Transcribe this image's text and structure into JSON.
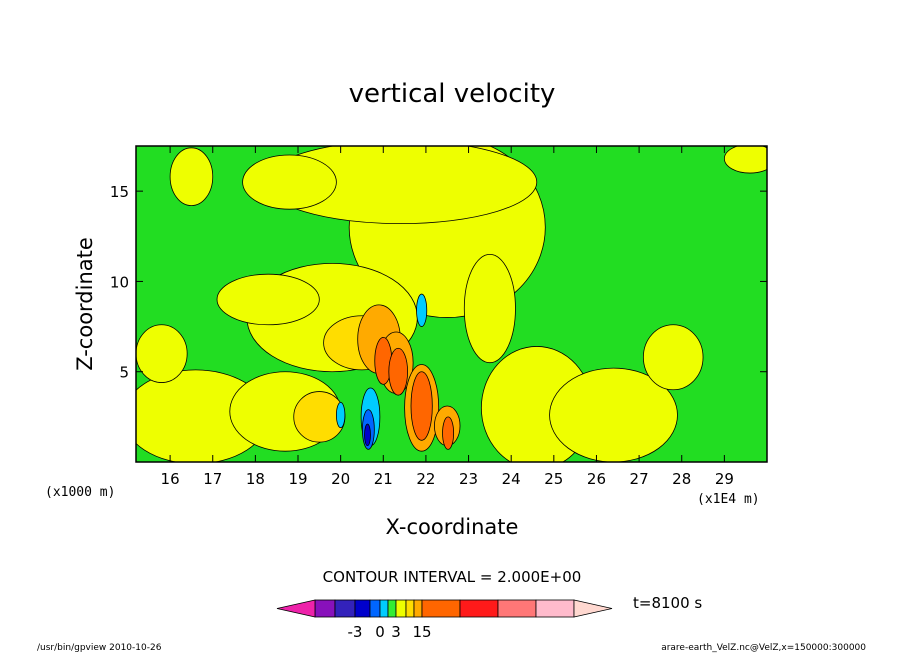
{
  "chart_data": {
    "type": "heatmap",
    "title": "vertical velocity",
    "xlabel": "X-coordinate",
    "ylabel": "Z-coordinate",
    "x_unit_label": "(x1E4 m)",
    "y_unit_label": "(x1000 m)",
    "xlim": [
      15.2,
      30.0
    ],
    "ylim": [
      0.0,
      17.5
    ],
    "x_ticks": [
      16,
      17,
      18,
      19,
      20,
      21,
      22,
      23,
      24,
      25,
      26,
      27,
      28,
      29
    ],
    "y_ticks": [
      5,
      10,
      15
    ],
    "contour_interval_text": "CONTOUR INTERVAL = 2.000E+00",
    "time_label": "t=8100 s",
    "colorbar": {
      "levels": [
        -9,
        -7,
        -5,
        -3,
        -1,
        0,
        1,
        3,
        5,
        7,
        15,
        30,
        45,
        60,
        75
      ],
      "tick_labels": [
        {
          "value": -3,
          "text": "-3"
        },
        {
          "value": 0,
          "text": "0"
        },
        {
          "value": 3,
          "text": "3"
        },
        {
          "value": 15,
          "text": "15"
        }
      ],
      "colors": [
        "#ee22aa",
        "#8811bb",
        "#3322bb",
        "#0000cc",
        "#0066ff",
        "#00ccff",
        "#33ee33",
        "#eeff00",
        "#ffdd00",
        "#ffaa00",
        "#ff6600",
        "#ff1a1a",
        "#ff7777",
        "#ffbbcc",
        "#ffd8d0"
      ]
    },
    "background_level_color": "#22dd22",
    "regions": [
      {
        "level": 1,
        "color": "#eeff00",
        "x": 22.5,
        "y": 13.0,
        "rx": 2.3,
        "ry": 5.0
      },
      {
        "level": 1,
        "color": "#eeff00",
        "x": 21.4,
        "y": 15.5,
        "rx": 3.2,
        "ry": 2.3
      },
      {
        "level": 1,
        "color": "#eeff00",
        "x": 19.8,
        "y": 8.0,
        "rx": 2.0,
        "ry": 3.0
      },
      {
        "level": 1,
        "color": "#eeff00",
        "x": 18.3,
        "y": 9.0,
        "rx": 1.2,
        "ry": 1.4
      },
      {
        "level": 1,
        "color": "#eeff00",
        "x": 16.6,
        "y": 2.5,
        "rx": 1.7,
        "ry": 2.6
      },
      {
        "level": 1,
        "color": "#eeff00",
        "x": 18.7,
        "y": 2.8,
        "rx": 1.3,
        "ry": 2.2
      },
      {
        "level": 1,
        "color": "#eeff00",
        "x": 15.8,
        "y": 6.0,
        "rx": 0.6,
        "ry": 1.6
      },
      {
        "level": 1,
        "color": "#eeff00",
        "x": 24.6,
        "y": 3.0,
        "rx": 1.3,
        "ry": 3.4
      },
      {
        "level": 1,
        "color": "#eeff00",
        "x": 26.4,
        "y": 2.6,
        "rx": 1.5,
        "ry": 2.6
      },
      {
        "level": 1,
        "color": "#eeff00",
        "x": 23.5,
        "y": 8.5,
        "rx": 0.6,
        "ry": 3.0
      },
      {
        "level": 1,
        "color": "#eeff00",
        "x": 16.5,
        "y": 15.8,
        "rx": 0.5,
        "ry": 1.6
      },
      {
        "level": 1,
        "color": "#eeff00",
        "x": 18.8,
        "y": 15.5,
        "rx": 1.1,
        "ry": 1.5
      },
      {
        "level": 1,
        "color": "#eeff00",
        "x": 27.8,
        "y": 5.8,
        "rx": 0.7,
        "ry": 1.8
      },
      {
        "level": 1,
        "color": "#eeff00",
        "x": 29.6,
        "y": 16.8,
        "rx": 0.6,
        "ry": 0.8
      },
      {
        "level": 3,
        "color": "#ffdd00",
        "x": 20.5,
        "y": 6.6,
        "rx": 0.9,
        "ry": 1.5
      },
      {
        "level": 3,
        "color": "#ffdd00",
        "x": 19.5,
        "y": 2.5,
        "rx": 0.6,
        "ry": 1.4
      },
      {
        "level": 5,
        "color": "#ffaa00",
        "x": 20.9,
        "y": 6.8,
        "rx": 0.5,
        "ry": 1.9
      },
      {
        "level": 5,
        "color": "#ffaa00",
        "x": 21.3,
        "y": 5.5,
        "rx": 0.4,
        "ry": 1.7
      },
      {
        "level": 5,
        "color": "#ffaa00",
        "x": 21.9,
        "y": 3.0,
        "rx": 0.4,
        "ry": 2.4
      },
      {
        "level": 5,
        "color": "#ffaa00",
        "x": 22.5,
        "y": 2.0,
        "rx": 0.3,
        "ry": 1.1
      },
      {
        "level": 7,
        "color": "#ff6600",
        "x": 21.0,
        "y": 5.6,
        "rx": 0.2,
        "ry": 1.3
      },
      {
        "level": 7,
        "color": "#ff6600",
        "x": 21.35,
        "y": 5.0,
        "rx": 0.22,
        "ry": 1.3
      },
      {
        "level": 7,
        "color": "#ff6600",
        "x": 21.9,
        "y": 3.1,
        "rx": 0.25,
        "ry": 1.9
      },
      {
        "level": 7,
        "color": "#ff6600",
        "x": 22.52,
        "y": 1.6,
        "rx": 0.13,
        "ry": 0.9
      },
      {
        "level": -1,
        "color": "#00ccff",
        "x": 21.9,
        "y": 8.4,
        "rx": 0.12,
        "ry": 0.9
      },
      {
        "level": -1,
        "color": "#00ccff",
        "x": 20.7,
        "y": 2.5,
        "rx": 0.22,
        "ry": 1.6
      },
      {
        "level": -1,
        "color": "#00ccff",
        "x": 20.0,
        "y": 2.6,
        "rx": 0.1,
        "ry": 0.7
      },
      {
        "level": -3,
        "color": "#0066ff",
        "x": 20.65,
        "y": 1.8,
        "rx": 0.14,
        "ry": 1.1
      },
      {
        "level": -5,
        "color": "#0000cc",
        "x": 20.63,
        "y": 1.5,
        "rx": 0.07,
        "ry": 0.6
      }
    ]
  },
  "footer": {
    "left": "/usr/bin/gpview  2010-10-26",
    "right": "arare-earth_VelZ.nc@VelZ,x=150000:300000"
  }
}
